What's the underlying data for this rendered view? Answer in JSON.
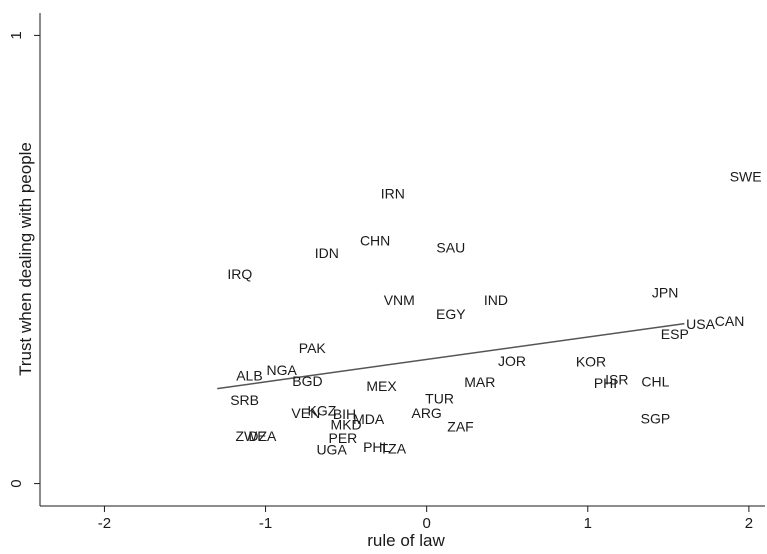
{
  "chart_data": {
    "type": "scatter",
    "xlabel": "rule of law",
    "ylabel": "Trust when dealing with people",
    "xlim": [
      -2.4,
      2.1
    ],
    "ylim": [
      -0.05,
      1.05
    ],
    "x_ticks": [
      -2,
      -1,
      0,
      1,
      2
    ],
    "y_ticks": [
      0,
      1
    ],
    "grid": false,
    "marker": "text labels",
    "colors": {
      "background": "#ffffff",
      "plot_background": "#ffffff",
      "axis": "#1a1a1a",
      "text": "#1a1a1a",
      "fit_line": "#555555"
    },
    "points": [
      {
        "label": "SWE",
        "x": 1.98,
        "y": 0.685
      },
      {
        "label": "IRN",
        "x": -0.21,
        "y": 0.647
      },
      {
        "label": "CHN",
        "x": -0.32,
        "y": 0.542
      },
      {
        "label": "SAU",
        "x": 0.15,
        "y": 0.527
      },
      {
        "label": "IDN",
        "x": -0.62,
        "y": 0.514
      },
      {
        "label": "IRQ",
        "x": -1.16,
        "y": 0.468
      },
      {
        "label": "JPN",
        "x": 1.48,
        "y": 0.426
      },
      {
        "label": "VNM",
        "x": -0.17,
        "y": 0.41
      },
      {
        "label": "IND",
        "x": 0.43,
        "y": 0.41
      },
      {
        "label": "EGY",
        "x": 0.15,
        "y": 0.378
      },
      {
        "label": "CAN",
        "x": 1.88,
        "y": 0.363
      },
      {
        "label": "USA",
        "x": 1.7,
        "y": 0.356
      },
      {
        "label": "ESP",
        "x": 1.54,
        "y": 0.334
      },
      {
        "label": "PAK",
        "x": -0.71,
        "y": 0.302
      },
      {
        "label": "JOR",
        "x": 0.53,
        "y": 0.274
      },
      {
        "label": "KOR",
        "x": 1.02,
        "y": 0.272
      },
      {
        "label": "NGA",
        "x": -0.9,
        "y": 0.254
      },
      {
        "label": "ALB",
        "x": -1.1,
        "y": 0.241
      },
      {
        "label": "BGD",
        "x": -0.74,
        "y": 0.229
      },
      {
        "label": "ISR",
        "x": 1.18,
        "y": 0.232
      },
      {
        "label": "CHL",
        "x": 1.42,
        "y": 0.228
      },
      {
        "label": "PHI",
        "x": 1.11,
        "y": 0.225
      },
      {
        "label": "MAR",
        "x": 0.33,
        "y": 0.227
      },
      {
        "label": "MEX",
        "x": -0.28,
        "y": 0.218
      },
      {
        "label": "TUR",
        "x": 0.08,
        "y": 0.19
      },
      {
        "label": "SRB",
        "x": -1.13,
        "y": 0.187
      },
      {
        "label": "KGZ",
        "x": -0.65,
        "y": 0.163
      },
      {
        "label": "VEN",
        "x": -0.75,
        "y": 0.158
      },
      {
        "label": "BIH",
        "x": -0.51,
        "y": 0.155
      },
      {
        "label": "ARG",
        "x": 0.0,
        "y": 0.157
      },
      {
        "label": "MDA",
        "x": -0.36,
        "y": 0.144
      },
      {
        "label": "SGP",
        "x": 1.42,
        "y": 0.145
      },
      {
        "label": "MKD",
        "x": -0.5,
        "y": 0.132
      },
      {
        "label": "ZAF",
        "x": 0.21,
        "y": 0.127
      },
      {
        "label": "ZWE",
        "x": -1.09,
        "y": 0.106
      },
      {
        "label": "DZA",
        "x": -1.02,
        "y": 0.106
      },
      {
        "label": "PER",
        "x": -0.52,
        "y": 0.102
      },
      {
        "label": "PHL",
        "x": -0.31,
        "y": 0.082
      },
      {
        "label": "TZA",
        "x": -0.21,
        "y": 0.078
      },
      {
        "label": "UGA",
        "x": -0.59,
        "y": 0.076
      }
    ],
    "fit_line": {
      "x": [
        -1.3,
        1.6
      ],
      "y": [
        0.212,
        0.357
      ]
    }
  }
}
